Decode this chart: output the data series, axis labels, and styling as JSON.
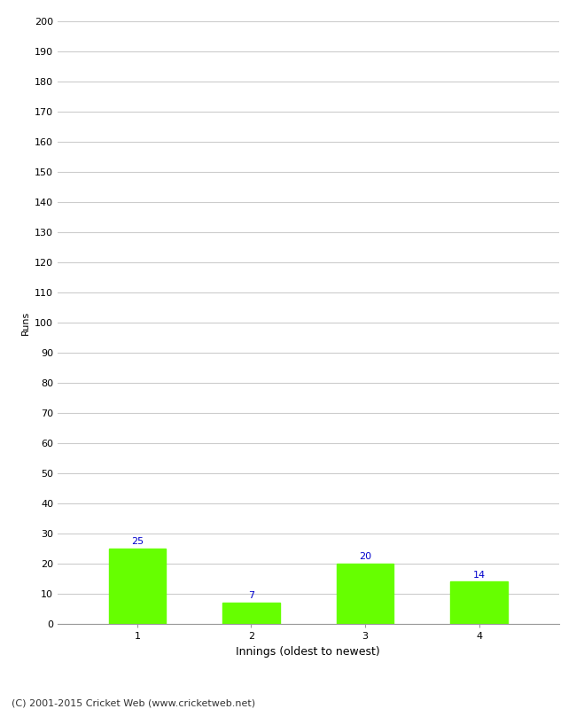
{
  "categories": [
    "1",
    "2",
    "3",
    "4"
  ],
  "values": [
    25,
    7,
    20,
    14
  ],
  "bar_color": "#66ff00",
  "bar_edge_color": "#66ff00",
  "value_label_color": "#0000cc",
  "value_label_fontsize": 8,
  "xlabel": "Innings (oldest to newest)",
  "ylabel": "Runs",
  "ylim": [
    0,
    200
  ],
  "yticks": [
    0,
    10,
    20,
    30,
    40,
    50,
    60,
    70,
    80,
    90,
    100,
    110,
    120,
    130,
    140,
    150,
    160,
    170,
    180,
    190,
    200
  ],
  "grid_color": "#cccccc",
  "background_color": "#ffffff",
  "footer_text": "(C) 2001-2015 Cricket Web (www.cricketweb.net)",
  "xlabel_fontsize": 9,
  "ylabel_fontsize": 8,
  "tick_fontsize": 8,
  "footer_fontsize": 8
}
